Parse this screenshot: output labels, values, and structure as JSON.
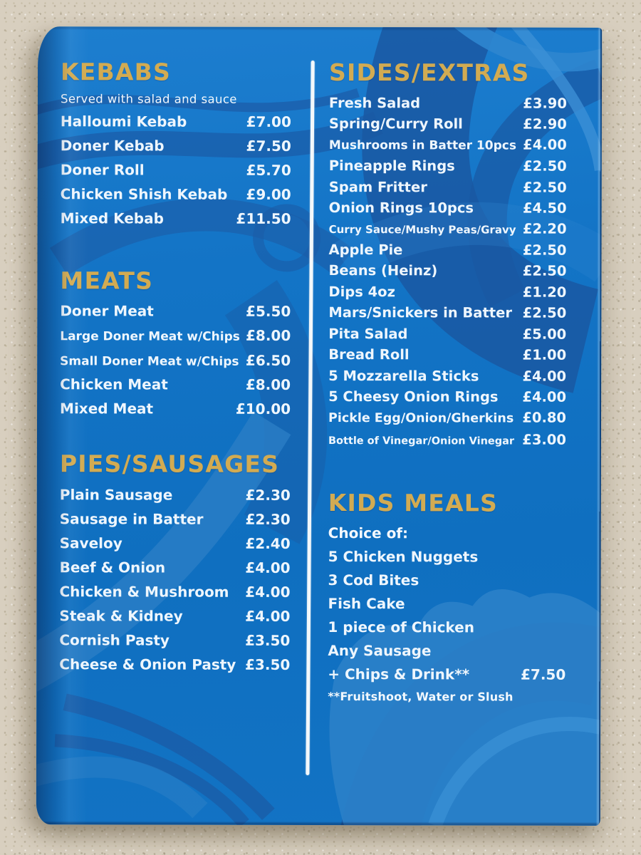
{
  "menu": {
    "surface_color": "#d8cfbf",
    "page_blue": "#1173c5",
    "swirl_dark_blue": "#1a5aa5",
    "swirl_light_blue": "#2f86cf",
    "accent_gold": "#d2ab52",
    "text_color": "#eef6fd",
    "divider_color": "#f3f8fb",
    "columns": {
      "left": [
        "kebabs",
        "meats",
        "pies"
      ],
      "right": [
        "sides",
        "kids"
      ]
    },
    "sections": {
      "kebabs": {
        "title": "KEBABS",
        "note": "Served with salad and sauce",
        "items": [
          {
            "name": "Halloumi Kebab",
            "price": "£7.00"
          },
          {
            "name": "Doner Kebab",
            "price": "£7.50"
          },
          {
            "name": "Doner Roll",
            "price": "£5.70"
          },
          {
            "name": "Chicken Shish Kebab",
            "price": "£9.00"
          },
          {
            "name": "Mixed Kebab",
            "price": "£11.50"
          }
        ]
      },
      "meats": {
        "title": "MEATS",
        "items": [
          {
            "name": "Doner Meat",
            "price": "£5.50"
          },
          {
            "name": "Large Doner Meat w/Chips",
            "price": "£8.00"
          },
          {
            "name": "Small Doner Meat w/Chips",
            "price": "£6.50"
          },
          {
            "name": "Chicken Meat",
            "price": "£8.00"
          },
          {
            "name": "Mixed Meat",
            "price": "£10.00"
          }
        ]
      },
      "pies": {
        "title": "PIES/SAUSAGES",
        "items": [
          {
            "name": "Plain Sausage",
            "price": "£2.30"
          },
          {
            "name": "Sausage in Batter",
            "price": "£2.30"
          },
          {
            "name": "Saveloy",
            "price": "£2.40"
          },
          {
            "name": "Beef & Onion",
            "price": "£4.00"
          },
          {
            "name": "Chicken & Mushroom",
            "price": "£4.00"
          },
          {
            "name": "Steak & Kidney",
            "price": "£4.00"
          },
          {
            "name": "Cornish Pasty",
            "price": "£3.50"
          },
          {
            "name": "Cheese & Onion Pasty",
            "price": "£3.50"
          }
        ]
      },
      "sides": {
        "title": "SIDES/EXTRAS",
        "items": [
          {
            "name": "Fresh Salad",
            "price": "£3.90"
          },
          {
            "name": "Spring/Curry Roll",
            "price": "£2.90"
          },
          {
            "name": "Mushrooms in Batter 10pcs",
            "price": "£4.00"
          },
          {
            "name": "Pineapple Rings",
            "price": "£2.50"
          },
          {
            "name": "Spam Fritter",
            "price": "£2.50"
          },
          {
            "name": "Onion Rings 10pcs",
            "price": "£4.50"
          },
          {
            "name": "Curry Sauce/Mushy Peas/Gravy",
            "price": "£2.20"
          },
          {
            "name": "Apple Pie",
            "price": "£2.50"
          },
          {
            "name": "Beans (Heinz)",
            "price": "£2.50"
          },
          {
            "name": "Dips 4oz",
            "price": "£1.20"
          },
          {
            "name": "Mars/Snickers in Batter",
            "price": "£2.50"
          },
          {
            "name": "Pita Salad",
            "price": "£5.00"
          },
          {
            "name": "Bread Roll",
            "price": "£1.00"
          },
          {
            "name": "5 Mozzarella Sticks",
            "price": "£4.00"
          },
          {
            "name": "5 Cheesy Onion Rings",
            "price": "£4.00"
          },
          {
            "name": "Pickle Egg/Onion/Gherkins",
            "price": "£0.80"
          },
          {
            "name": "Bottle of Vinegar/Onion Vinegar",
            "price": "£3.00"
          }
        ]
      },
      "kids": {
        "title": "KIDS MEALS",
        "intro": "Choice of:",
        "items": [
          {
            "name": "5 Chicken Nuggets"
          },
          {
            "name": "3 Cod Bites"
          },
          {
            "name": "Fish Cake"
          },
          {
            "name": "1 piece of Chicken"
          },
          {
            "name": "Any Sausage"
          },
          {
            "name": "+ Chips & Drink**",
            "price": "£7.50"
          }
        ],
        "footnote": "**Fruitshoot, Water or Slush"
      }
    }
  }
}
